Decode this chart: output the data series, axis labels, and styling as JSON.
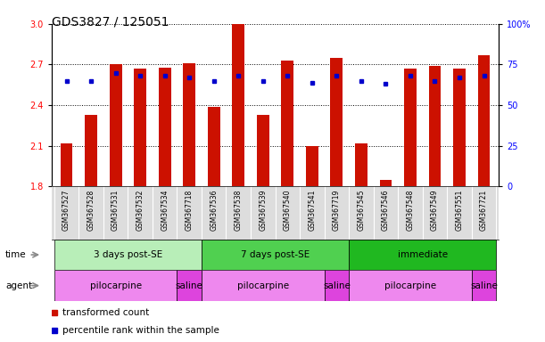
{
  "title": "GDS3827 / 125051",
  "samples": [
    "GSM367527",
    "GSM367528",
    "GSM367531",
    "GSM367532",
    "GSM367534",
    "GSM367718",
    "GSM367536",
    "GSM367538",
    "GSM367539",
    "GSM367540",
    "GSM367541",
    "GSM367719",
    "GSM367545",
    "GSM367546",
    "GSM367548",
    "GSM367549",
    "GSM367551",
    "GSM367721"
  ],
  "bar_values": [
    2.12,
    2.33,
    2.7,
    2.67,
    2.68,
    2.71,
    2.39,
    3.0,
    2.33,
    2.73,
    2.1,
    2.75,
    2.12,
    1.85,
    2.67,
    2.69,
    2.67,
    2.77
  ],
  "blue_values": [
    65,
    65,
    70,
    68,
    68,
    67,
    65,
    68,
    65,
    68,
    64,
    68,
    65,
    63,
    68,
    65,
    67,
    68
  ],
  "ylim_left": [
    1.8,
    3.0
  ],
  "ylim_right": [
    0,
    100
  ],
  "yticks_left": [
    1.8,
    2.1,
    2.4,
    2.7,
    3.0
  ],
  "yticks_right": [
    0,
    25,
    50,
    75,
    100
  ],
  "time_groups": [
    {
      "label": "3 days post-SE",
      "start": 0,
      "end": 5,
      "color": "#B8EEB8"
    },
    {
      "label": "7 days post-SE",
      "start": 6,
      "end": 11,
      "color": "#50D050"
    },
    {
      "label": "immediate",
      "start": 12,
      "end": 17,
      "color": "#20B820"
    }
  ],
  "agent_groups": [
    {
      "label": "pilocarpine",
      "start": 0,
      "end": 4,
      "color": "#EE88EE"
    },
    {
      "label": "saline",
      "start": 5,
      "end": 5,
      "color": "#DD44DD"
    },
    {
      "label": "pilocarpine",
      "start": 6,
      "end": 10,
      "color": "#EE88EE"
    },
    {
      "label": "saline",
      "start": 11,
      "end": 11,
      "color": "#DD44DD"
    },
    {
      "label": "pilocarpine",
      "start": 12,
      "end": 16,
      "color": "#EE88EE"
    },
    {
      "label": "saline",
      "start": 17,
      "end": 17,
      "color": "#DD44DD"
    }
  ],
  "bar_color": "#CC1100",
  "blue_color": "#0000CC",
  "bar_width": 0.5,
  "background_color": "white",
  "title_fontsize": 10,
  "tick_fontsize": 7,
  "sample_fontsize": 5.5,
  "row_fontsize": 7.5,
  "legend_fontsize": 7.5
}
